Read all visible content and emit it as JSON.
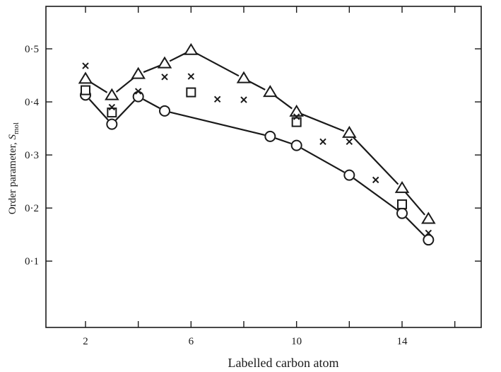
{
  "chart_data": {
    "type": "scatter",
    "xlabel": "Labelled carbon atom",
    "ylabel_main": "Order parameter, ",
    "ylabel_symbol": "S",
    "ylabel_subscript": "mol",
    "xlim": [
      0.5,
      17
    ],
    "ylim": [
      -0.025,
      0.58
    ],
    "xticks": [
      2,
      6,
      10,
      14
    ],
    "xtick_labels": [
      "2",
      "6",
      "10",
      "14"
    ],
    "xticks_minor": [
      4,
      8,
      12,
      16
    ],
    "yticks": [
      0.1,
      0.2,
      0.3,
      0.4,
      0.5
    ],
    "ytick_labels": [
      "0·1",
      "0·2",
      "0·3",
      "0·4",
      "0·5"
    ],
    "series": [
      {
        "marker": "triangle",
        "connected": true,
        "x": [
          2,
          3,
          4,
          5,
          6,
          8,
          9,
          10,
          12,
          14,
          15
        ],
        "y": [
          0.443,
          0.412,
          0.452,
          0.472,
          0.497,
          0.444,
          0.418,
          0.381,
          0.341,
          0.237,
          0.179
        ]
      },
      {
        "marker": "circle",
        "connected": true,
        "x": [
          2,
          3,
          4,
          5,
          9,
          10,
          12,
          14,
          15
        ],
        "y": [
          0.413,
          0.358,
          0.41,
          0.383,
          0.335,
          0.318,
          0.262,
          0.19,
          0.14
        ]
      },
      {
        "marker": "square",
        "connected": false,
        "x": [
          2,
          3,
          6,
          10,
          14
        ],
        "y": [
          0.422,
          0.38,
          0.418,
          0.362,
          0.207
        ]
      },
      {
        "marker": "cross",
        "connected": false,
        "x": [
          2,
          3,
          4,
          5,
          6,
          7,
          8,
          10,
          11,
          12,
          13,
          15
        ],
        "y": [
          0.468,
          0.39,
          0.42,
          0.447,
          0.448,
          0.405,
          0.404,
          0.372,
          0.325,
          0.325,
          0.253,
          0.153
        ]
      }
    ]
  }
}
